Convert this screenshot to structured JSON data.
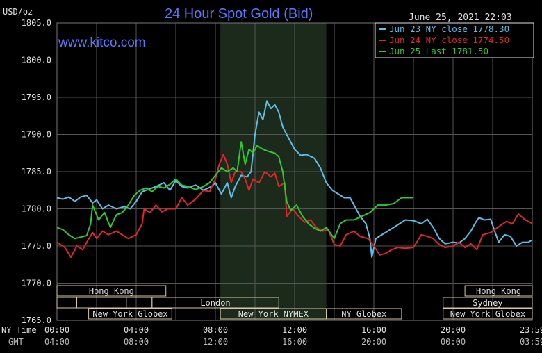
{
  "chart_data": {
    "type": "line",
    "title": "24 Hour Spot Gold (Bid)",
    "unit_label": "USD/oz",
    "watermark": "www.kitco.com",
    "timestamp": "June 25, 2021 22:03",
    "ylim": [
      1765,
      1805
    ],
    "y_ticks": [
      "1805.0",
      "1800.0",
      "1795.0",
      "1790.0",
      "1785.0",
      "1780.0",
      "1775.0",
      "1770.0",
      "1765.0"
    ],
    "xlim": [
      0,
      24
    ],
    "x_ticks_ny": [
      "00:00",
      "04:00",
      "08:00",
      "12:00",
      "16:00",
      "20:00",
      "23:59"
    ],
    "x_ticks_gmt": [
      "04:00",
      "08:00",
      "12:00",
      "16:00",
      "20:00",
      "00:00",
      "03:59"
    ],
    "x_row_label_ny": "NY Time",
    "x_row_label_gmt": "GMT",
    "shaded_region_hours": [
      8.25,
      13.6
    ],
    "grid": true,
    "legend_position": "top-right",
    "colors": {
      "background": "#000000",
      "grid": "#555555",
      "title": "#5a78ff",
      "watermark": "#5a78ff",
      "shade": "#1c2a1c"
    },
    "series": [
      {
        "name": "Jun 23 NY close 1778.30",
        "color": "#5bbfe8",
        "points": [
          [
            0,
            1781.5
          ],
          [
            0.3,
            1781.3
          ],
          [
            0.6,
            1781.6
          ],
          [
            0.9,
            1781
          ],
          [
            1.2,
            1781.6
          ],
          [
            1.5,
            1781.8
          ],
          [
            1.8,
            1780.8
          ],
          [
            2.0,
            1781.2
          ],
          [
            2.3,
            1780
          ],
          [
            2.6,
            1780.5
          ],
          [
            3.0,
            1780
          ],
          [
            3.4,
            1780.3
          ],
          [
            3.7,
            1780
          ],
          [
            4.0,
            1781
          ],
          [
            4.3,
            1782.3
          ],
          [
            4.6,
            1782.6
          ],
          [
            5.0,
            1783
          ],
          [
            5.4,
            1783.5
          ],
          [
            5.7,
            1782.5
          ],
          [
            6.0,
            1783.8
          ],
          [
            6.3,
            1783
          ],
          [
            6.6,
            1782.8
          ],
          [
            7.0,
            1783.2
          ],
          [
            7.4,
            1782.5
          ],
          [
            7.8,
            1783
          ],
          [
            8.0,
            1783.5
          ],
          [
            8.3,
            1782
          ],
          [
            8.6,
            1783.5
          ],
          [
            8.8,
            1781.5
          ],
          [
            9.0,
            1783
          ],
          [
            9.3,
            1784.5
          ],
          [
            9.6,
            1784.3
          ],
          [
            9.8,
            1785
          ],
          [
            10.0,
            1790
          ],
          [
            10.2,
            1793
          ],
          [
            10.4,
            1792
          ],
          [
            10.6,
            1794.5
          ],
          [
            10.8,
            1793.5
          ],
          [
            11.0,
            1794
          ],
          [
            11.2,
            1793
          ],
          [
            11.4,
            1791
          ],
          [
            11.6,
            1790
          ],
          [
            11.8,
            1789
          ],
          [
            12.0,
            1788
          ],
          [
            12.3,
            1787.2
          ],
          [
            12.6,
            1787.3
          ],
          [
            13.0,
            1786.8
          ],
          [
            13.3,
            1785.5
          ],
          [
            13.6,
            1783.5
          ],
          [
            13.9,
            1782.5
          ],
          [
            14.2,
            1782
          ],
          [
            14.5,
            1781.5
          ],
          [
            14.8,
            1781.5
          ],
          [
            15.0,
            1780.5
          ],
          [
            15.3,
            1779
          ],
          [
            15.6,
            1778
          ],
          [
            15.8,
            1776
          ],
          [
            15.9,
            1773.5
          ],
          [
            16.1,
            1776
          ],
          [
            16.4,
            1776.5
          ],
          [
            16.7,
            1777
          ],
          [
            17.0,
            1777.5
          ],
          [
            17.3,
            1778
          ],
          [
            17.6,
            1778.5
          ],
          [
            18.0,
            1778.4
          ],
          [
            18.4,
            1778
          ],
          [
            18.7,
            1778.6
          ],
          [
            19.0,
            1777.5
          ],
          [
            19.3,
            1776
          ],
          [
            19.6,
            1775.3
          ],
          [
            20.0,
            1775.5
          ],
          [
            20.3,
            1775.4
          ],
          [
            20.6,
            1776
          ],
          [
            20.9,
            1777
          ],
          [
            21.1,
            1778
          ],
          [
            21.3,
            1778.8
          ],
          [
            21.6,
            1778.5
          ],
          [
            21.9,
            1778.6
          ],
          [
            22.1,
            1777
          ],
          [
            22.3,
            1775.5
          ],
          [
            22.6,
            1776.5
          ],
          [
            22.9,
            1776.3
          ],
          [
            23.2,
            1775
          ],
          [
            23.5,
            1775.5
          ],
          [
            23.8,
            1775.5
          ],
          [
            24.0,
            1775.8
          ]
        ]
      },
      {
        "name": "Jun 24 NY close 1774.50",
        "color": "#e0262a",
        "points": [
          [
            0,
            1775.5
          ],
          [
            0.4,
            1774.8
          ],
          [
            0.7,
            1773.5
          ],
          [
            1.0,
            1775
          ],
          [
            1.3,
            1774.5
          ],
          [
            1.5,
            1775.5
          ],
          [
            1.8,
            1776.8
          ],
          [
            2.0,
            1776
          ],
          [
            2.3,
            1777
          ],
          [
            2.6,
            1776.5
          ],
          [
            3.0,
            1777
          ],
          [
            3.3,
            1776.5
          ],
          [
            3.6,
            1776
          ],
          [
            4.0,
            1776.5
          ],
          [
            4.3,
            1778
          ],
          [
            4.4,
            1780
          ],
          [
            4.7,
            1779.5
          ],
          [
            5.0,
            1780.5
          ],
          [
            5.3,
            1779.6
          ],
          [
            5.6,
            1780
          ],
          [
            6.0,
            1780
          ],
          [
            6.3,
            1781.5
          ],
          [
            6.6,
            1780.5
          ],
          [
            7.0,
            1781.3
          ],
          [
            7.4,
            1782.5
          ],
          [
            7.7,
            1782.3
          ],
          [
            8.0,
            1784
          ],
          [
            8.2,
            1786
          ],
          [
            8.4,
            1787.3
          ],
          [
            8.6,
            1786
          ],
          [
            8.8,
            1783.5
          ],
          [
            9.0,
            1785
          ],
          [
            9.3,
            1785
          ],
          [
            9.5,
            1784
          ],
          [
            9.7,
            1782.5
          ],
          [
            9.9,
            1784
          ],
          [
            10.2,
            1783.5
          ],
          [
            10.5,
            1785
          ],
          [
            10.8,
            1784.3
          ],
          [
            11.0,
            1784.8
          ],
          [
            11.2,
            1783
          ],
          [
            11.5,
            1783.5
          ],
          [
            11.6,
            1779
          ],
          [
            11.9,
            1780
          ],
          [
            12.2,
            1779
          ],
          [
            12.5,
            1778.2
          ],
          [
            12.8,
            1778.5
          ],
          [
            13.1,
            1777.5
          ],
          [
            13.4,
            1777
          ],
          [
            13.7,
            1777.2
          ],
          [
            14.0,
            1775.2
          ],
          [
            14.3,
            1775
          ],
          [
            14.6,
            1776.5
          ],
          [
            15.0,
            1777
          ],
          [
            15.3,
            1776.3
          ],
          [
            15.7,
            1776
          ],
          [
            16.0,
            1775
          ],
          [
            16.3,
            1773.8
          ],
          [
            16.6,
            1774
          ],
          [
            16.9,
            1774.5
          ],
          [
            17.2,
            1774.8
          ],
          [
            17.6,
            1774.7
          ],
          [
            18.0,
            1774.8
          ],
          [
            18.4,
            1776.5
          ],
          [
            18.7,
            1776.3
          ],
          [
            19.0,
            1776
          ],
          [
            19.3,
            1775.2
          ],
          [
            19.6,
            1774.8
          ],
          [
            20.0,
            1775
          ],
          [
            20.3,
            1775.5
          ],
          [
            20.6,
            1774.8
          ],
          [
            20.9,
            1775.3
          ],
          [
            21.2,
            1774.5
          ],
          [
            21.5,
            1776.5
          ],
          [
            21.9,
            1776.8
          ],
          [
            22.3,
            1777.6
          ],
          [
            22.7,
            1778.3
          ],
          [
            23.0,
            1778
          ],
          [
            23.3,
            1779.3
          ],
          [
            23.6,
            1778.6
          ],
          [
            24.0,
            1778
          ]
        ]
      },
      {
        "name": "Jun 25 Last 1781.50",
        "color": "#2ec92e",
        "points": [
          [
            0,
            1777.5
          ],
          [
            0.3,
            1777.2
          ],
          [
            0.6,
            1776.5
          ],
          [
            0.9,
            1776
          ],
          [
            1.2,
            1776.2
          ],
          [
            1.5,
            1776.4
          ],
          [
            1.7,
            1778
          ],
          [
            1.8,
            1780.5
          ],
          [
            2.1,
            1778.5
          ],
          [
            2.4,
            1779.5
          ],
          [
            2.7,
            1777.5
          ],
          [
            3.0,
            1779.2
          ],
          [
            3.3,
            1779.5
          ],
          [
            3.6,
            1780.5
          ],
          [
            3.9,
            1781.8
          ],
          [
            4.2,
            1782.5
          ],
          [
            4.5,
            1782.8
          ],
          [
            4.8,
            1782.3
          ],
          [
            5.1,
            1783
          ],
          [
            5.4,
            1782.8
          ],
          [
            5.7,
            1783.3
          ],
          [
            6.0,
            1784
          ],
          [
            6.3,
            1783.2
          ],
          [
            6.6,
            1783
          ],
          [
            7.0,
            1782.6
          ],
          [
            7.4,
            1783
          ],
          [
            7.7,
            1783.5
          ],
          [
            8.0,
            1784.5
          ],
          [
            8.3,
            1785.5
          ],
          [
            8.6,
            1785
          ],
          [
            8.9,
            1785.5
          ],
          [
            9.1,
            1785
          ],
          [
            9.3,
            1789
          ],
          [
            9.5,
            1786
          ],
          [
            9.7,
            1788
          ],
          [
            9.9,
            1787.5
          ],
          [
            10.1,
            1788.5
          ],
          [
            10.4,
            1788
          ],
          [
            10.7,
            1787.7
          ],
          [
            11.0,
            1787.5
          ],
          [
            11.2,
            1787
          ],
          [
            11.4,
            1785
          ],
          [
            11.6,
            1781
          ],
          [
            11.8,
            1779.8
          ],
          [
            12.1,
            1780.5
          ],
          [
            12.4,
            1779
          ],
          [
            12.7,
            1778
          ],
          [
            13.0,
            1777.4
          ],
          [
            13.3,
            1777
          ],
          [
            13.6,
            1777.5
          ],
          [
            14.0,
            1776
          ],
          [
            14.3,
            1778
          ],
          [
            14.6,
            1778.5
          ],
          [
            15.0,
            1778.5
          ],
          [
            15.4,
            1779
          ],
          [
            15.8,
            1779.5
          ],
          [
            16.2,
            1780.5
          ],
          [
            16.6,
            1780.5
          ],
          [
            17.0,
            1780.7
          ],
          [
            17.4,
            1781.5
          ],
          [
            17.7,
            1781.5
          ],
          [
            18.0,
            1781.5
          ]
        ]
      }
    ],
    "session_bars": [
      {
        "label": "Hong Kong",
        "row": 1,
        "start": 0,
        "end": 5.5
      },
      {
        "label": "Hong Kong",
        "row": 1,
        "start": 20.6,
        "end": 24
      },
      {
        "label": "",
        "row": 2,
        "start": 0,
        "end": 1
      },
      {
        "label": "",
        "row": 2,
        "start": 1,
        "end": 3.5
      },
      {
        "label": "",
        "row": 2,
        "start": 3.5,
        "end": 4.8
      },
      {
        "label": "London",
        "row": 2,
        "start": 4.8,
        "end": 11.2
      },
      {
        "label": "Sydney",
        "row": 2,
        "start": 19.5,
        "end": 24
      },
      {
        "label": "New York Globex",
        "row": 3,
        "start": 1.6,
        "end": 5.8
      },
      {
        "label": "New York NYMEX",
        "row": 3,
        "start": 8.25,
        "end": 13.6
      },
      {
        "label": "NY Globex",
        "row": 3,
        "start": 13.6,
        "end": 17.4
      },
      {
        "label": "New York Globex",
        "row": 3,
        "start": 19.5,
        "end": 24
      }
    ]
  }
}
